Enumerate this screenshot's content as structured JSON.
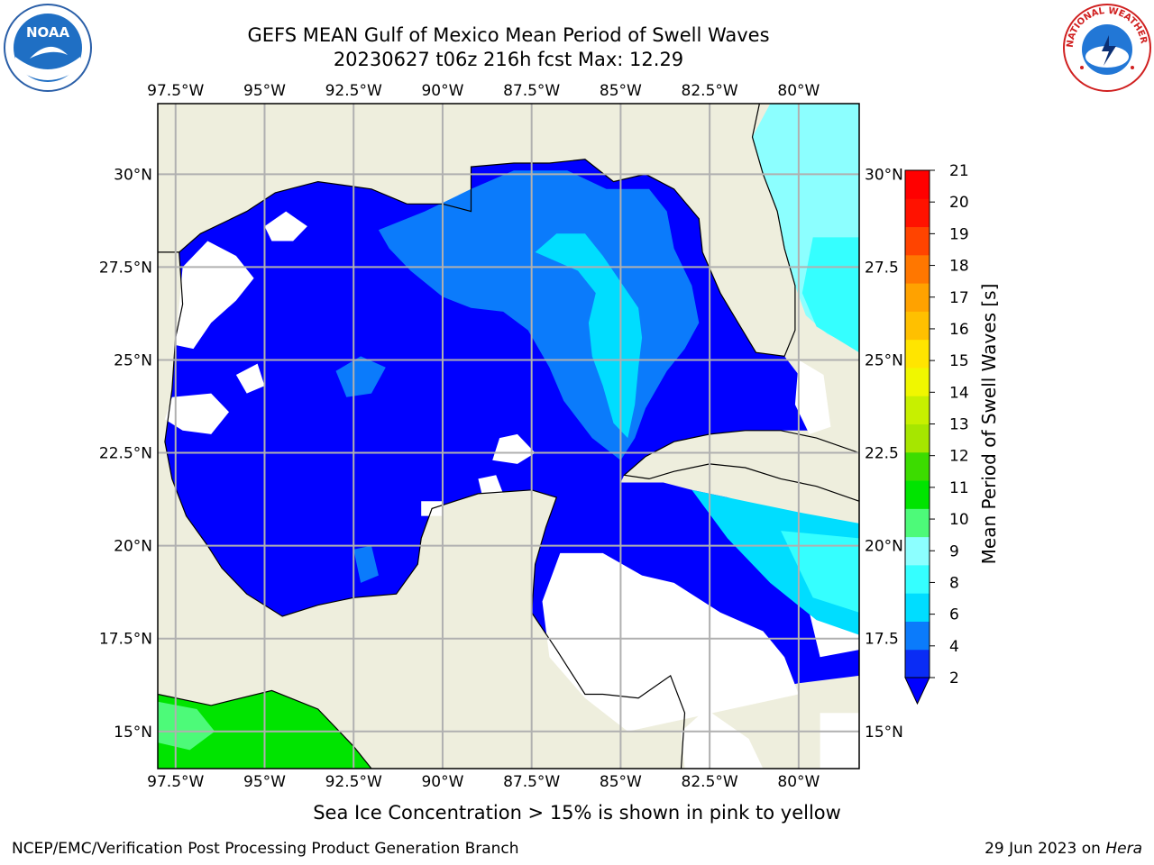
{
  "header": {
    "title_line1": "GEFS MEAN Gulf of Mexico Mean Period of Swell Waves",
    "title_line2": "20230627 t06z 216h fcst   Max: 12.29"
  },
  "logos": {
    "left_text": "NOAA",
    "right_text": "NATIONAL WEATHER SERVICE"
  },
  "map": {
    "lon_labels": [
      "97.5°W",
      "95°W",
      "92.5°W",
      "90°W",
      "87.5°W",
      "85°W",
      "82.5°W",
      "80°W"
    ],
    "lat_labels_left": [
      "30°N",
      "27.5°N",
      "25°N",
      "22.5°N",
      "20°N",
      "17.5°N",
      "15°N"
    ],
    "lat_labels_right": [
      "30°N",
      "27.5",
      "25°N",
      "22.5",
      "20°N",
      "17.5",
      "15°N"
    ],
    "lon_ticks": [
      -97.5,
      -95,
      -92.5,
      -90,
      -87.5,
      -85,
      -82.5,
      -80
    ],
    "lat_ticks": [
      30,
      27.5,
      25,
      22.5,
      20,
      17.5,
      15
    ],
    "extent": {
      "lon_min": -98,
      "lon_max": -78.3,
      "lat_min": 14,
      "lat_max": 31.9
    },
    "colors": {
      "land": "#eeeedd",
      "grid": "#b0b0b0",
      "coast": "#000000",
      "no_data": "#ffffff"
    }
  },
  "colorbar": {
    "label": "Mean Period of Swell Waves [s]",
    "ticks": [
      "2",
      "4",
      "6",
      "8",
      "9",
      "10",
      "11",
      "12",
      "13",
      "14",
      "15",
      "16",
      "17",
      "18",
      "19",
      "20",
      "21"
    ],
    "colors": [
      "#0a2cf5",
      "#0b7bfb",
      "#00ddff",
      "#35ffff",
      "#8cffff",
      "#4dfa79",
      "#00e400",
      "#3cdc00",
      "#a6e600",
      "#c7f000",
      "#f0f700",
      "#ffe500",
      "#ffc000",
      "#ffa200",
      "#ff7700",
      "#ff4400",
      "#ff1200",
      "#ff0000"
    ],
    "under_color": "#0000ff"
  },
  "note": "Sea Ice Concentration > 15% is shown in pink to yellow",
  "footer": {
    "left": "NCEP/EMC/Verification Post Processing Product Generation Branch",
    "right_prefix": "29 Jun 2023 on ",
    "right_host": "Hera"
  }
}
